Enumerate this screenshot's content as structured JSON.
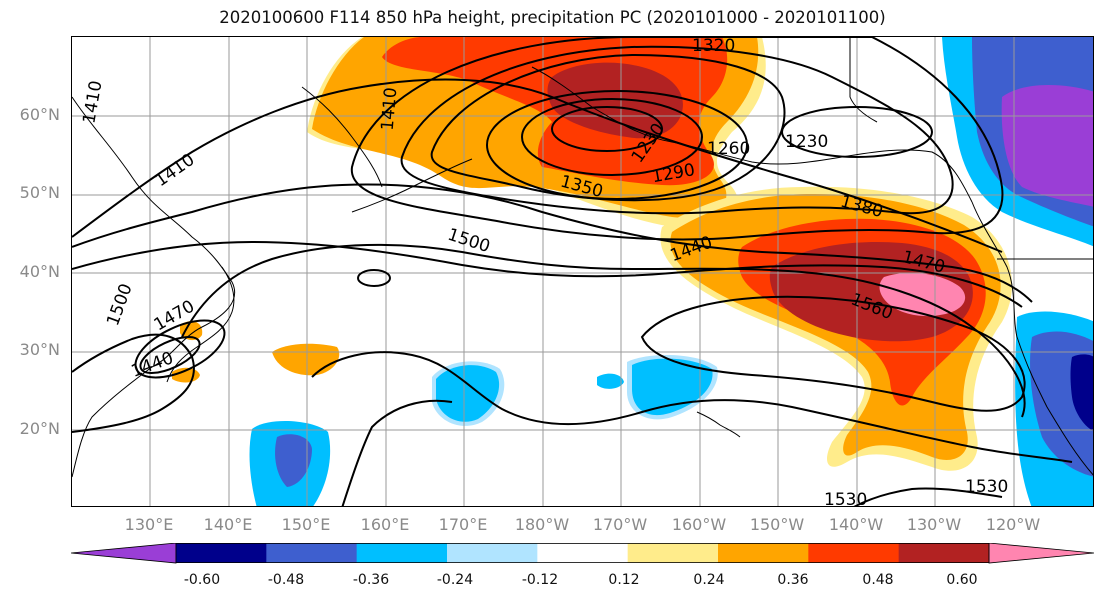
{
  "title": "2020100600 F114 850 hPa height, precipitation PC (2020101000 - 2020101100)",
  "lat_labels": [
    "60°N",
    "50°N",
    "40°N",
    "30°N",
    "20°N"
  ],
  "lon_labels": [
    "130°E",
    "140°E",
    "150°E",
    "160°E",
    "170°E",
    "180°W",
    "170°W",
    "160°W",
    "150°W",
    "140°W",
    "130°W",
    "120°W"
  ],
  "contour_labels": [
    "1320",
    "1230",
    "1260",
    "1230",
    "1290",
    "1350",
    "1380",
    "1440",
    "1410",
    "1410",
    "1410",
    "1500",
    "1470",
    "1560",
    "1500",
    "1470",
    "1440",
    "1530",
    "1530",
    "1350"
  ],
  "colorbar": {
    "ticks": [
      "-0.60",
      "-0.48",
      "-0.36",
      "-0.24",
      "-0.12",
      "0.12",
      "0.24",
      "0.36",
      "0.48",
      "0.60"
    ],
    "colors": [
      "#9a3ed6",
      "#00008b",
      "#3e5fcf",
      "#00bfff",
      "#b0e4ff",
      "#ffffff",
      "#ffec8b",
      "#ffa500",
      "#ff3a00",
      "#b22222",
      "#ff85b0"
    ]
  },
  "colors": {
    "yellow": "#ffec8b",
    "orange": "#ffa500",
    "red_orange": "#ff3a00",
    "dark_red": "#b22222",
    "pink": "#ff85b0",
    "light_blue": "#b0e4ff",
    "sky_blue": "#00bfff",
    "blue": "#3e5fcf",
    "navy": "#00008b",
    "purple": "#9a3ed6"
  }
}
